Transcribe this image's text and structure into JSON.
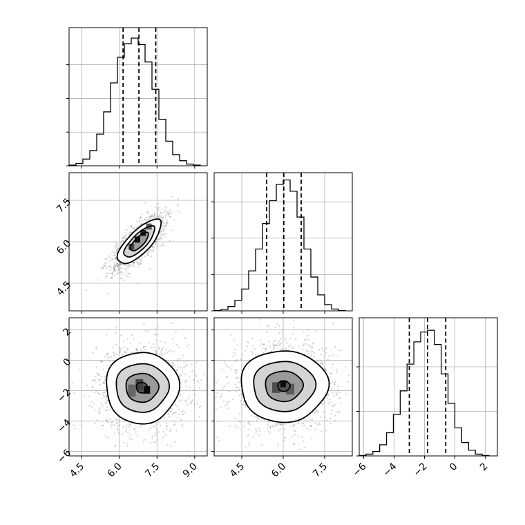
{
  "chart_data": {
    "type": "corner",
    "parameters": [
      {
        "id": "p0",
        "lim": [
          4.0,
          9.5
        ],
        "ticks": [
          4.5,
          6.0,
          7.5,
          9.0
        ],
        "tick_labels": [
          "4.5",
          "6.0",
          "7.5",
          "9.0"
        ],
        "hist_edges": [
          4.0,
          4.275,
          4.55,
          4.825,
          5.1,
          5.375,
          5.65,
          5.925,
          6.2,
          6.475,
          6.75,
          7.025,
          7.3,
          7.575,
          7.85,
          8.125,
          8.4,
          8.675,
          8.95,
          9.225
        ],
        "hist_values": [
          0.2,
          0.7,
          2.0,
          4.5,
          9.4,
          16.0,
          24.6,
          32.2,
          36.2,
          37.9,
          36.0,
          30.8,
          22.7,
          13.8,
          7.3,
          3.3,
          1.5,
          0.5,
          0.2
        ],
        "hist_ylim": [
          0,
          41
        ],
        "hist_ticks": [
          0,
          10,
          20,
          30
        ],
        "quantiles": [
          6.15,
          6.78,
          7.45
        ]
      },
      {
        "id": "p1",
        "lim": [
          3.5,
          8.5
        ],
        "ticks": [
          4.5,
          6.0,
          7.5
        ],
        "tick_labels": [
          "4.5",
          "6.0",
          "7.5"
        ],
        "hist_edges": [
          3.5,
          3.75,
          4.0,
          4.25,
          4.5,
          4.75,
          5.0,
          5.25,
          5.5,
          5.75,
          6.0,
          6.25,
          6.5,
          6.75,
          7.0,
          7.25,
          7.5,
          7.75,
          8.0,
          8.25
        ],
        "hist_values": [
          0.1,
          0.4,
          1.2,
          2.9,
          6.0,
          11.0,
          17.0,
          24.0,
          30.3,
          34.8,
          36.0,
          32.9,
          25.8,
          17.0,
          9.3,
          4.4,
          1.7,
          0.5,
          0.1
        ],
        "hist_ylim": [
          0,
          38
        ],
        "hist_ticks": [
          0,
          10,
          20,
          30
        ],
        "quantiles": [
          5.4,
          6.02,
          6.65
        ]
      },
      {
        "id": "p2",
        "lim": [
          -6.3,
          2.8
        ],
        "ticks": [
          -6,
          -4,
          -2,
          0,
          2
        ],
        "tick_labels": [
          "−6",
          "−4",
          "−2",
          "0",
          "2"
        ],
        "hist_edges": [
          -6.3,
          -5.85,
          -5.4,
          -4.95,
          -4.5,
          -4.05,
          -3.6,
          -3.15,
          -2.7,
          -2.25,
          -1.8,
          -1.35,
          -0.9,
          -0.45,
          0.0,
          0.45,
          0.9,
          1.35,
          1.8,
          2.25
        ],
        "hist_values": [
          0.1,
          0.4,
          1.0,
          2.5,
          5.2,
          9.3,
          14.6,
          20.6,
          25.6,
          27.8,
          28.2,
          25.0,
          18.4,
          11.8,
          6.3,
          3.0,
          1.3,
          0.4,
          0.1
        ],
        "hist_ylim": [
          0,
          31
        ],
        "hist_ticks": [
          0,
          10,
          20
        ],
        "quantiles": [
          -3.0,
          -1.8,
          -0.6
        ]
      }
    ],
    "pairs": [
      {
        "x": "p0",
        "y": "p1",
        "center": [
          6.8,
          6.0
        ],
        "levels": [
          {
            "rx": 1.1,
            "ry": 0.42,
            "angle_deg": 42
          },
          {
            "rx": 0.78,
            "ry": 0.28,
            "angle_deg": 42
          },
          {
            "rx": 0.46,
            "ry": 0.17,
            "angle_deg": 42
          }
        ],
        "density_cells": [
          {
            "x": 6.72,
            "y": 6.08,
            "w": 0.22,
            "h": 0.22,
            "shade": 0.05
          },
          {
            "x": 6.95,
            "y": 6.32,
            "w": 0.22,
            "h": 0.22,
            "shade": 0.1
          },
          {
            "x": 6.48,
            "y": 5.82,
            "w": 0.22,
            "h": 0.22,
            "shade": 0.25
          },
          {
            "x": 7.18,
            "y": 6.55,
            "w": 0.22,
            "h": 0.22,
            "shade": 0.35
          }
        ]
      },
      {
        "x": "p0",
        "y": "p2",
        "center": [
          6.9,
          -1.8
        ],
        "levels": [
          {
            "rx": 1.45,
            "ry": 2.35,
            "angle_deg": 0
          },
          {
            "rx": 1.05,
            "ry": 1.6,
            "angle_deg": 0
          },
          {
            "rx": 0.65,
            "ry": 0.95,
            "angle_deg": 0
          },
          {
            "rx": 0.22,
            "ry": 0.35,
            "angle_deg": 0
          }
        ],
        "density_cells": [
          {
            "x": 7.1,
            "y": -1.95,
            "w": 0.25,
            "h": 0.5,
            "shade": 0.05
          },
          {
            "x": 6.8,
            "y": -1.6,
            "w": 0.3,
            "h": 0.7,
            "shade": 0.25
          },
          {
            "x": 6.5,
            "y": -2.0,
            "w": 0.3,
            "h": 0.8,
            "shade": 0.4
          }
        ]
      },
      {
        "x": "p1",
        "y": "p2",
        "center": [
          6.02,
          -1.7
        ],
        "levels": [
          {
            "rx": 1.58,
            "ry": 2.35,
            "angle_deg": 0
          },
          {
            "rx": 1.12,
            "ry": 1.65,
            "angle_deg": 0
          },
          {
            "rx": 0.68,
            "ry": 1.0,
            "angle_deg": 0
          },
          {
            "rx": 0.22,
            "ry": 0.35,
            "angle_deg": 0
          }
        ],
        "density_cells": [
          {
            "x": 6.0,
            "y": -1.55,
            "w": 0.22,
            "h": 0.45,
            "shade": 0.05
          },
          {
            "x": 5.75,
            "y": -1.8,
            "w": 0.3,
            "h": 0.7,
            "shade": 0.3
          },
          {
            "x": 6.25,
            "y": -1.9,
            "w": 0.3,
            "h": 0.7,
            "shade": 0.35
          }
        ]
      }
    ],
    "grid": true,
    "colors": {
      "ink": "#000000",
      "grid": "#b0b0b0",
      "scatter": "#777777",
      "background": "#ffffff"
    }
  }
}
